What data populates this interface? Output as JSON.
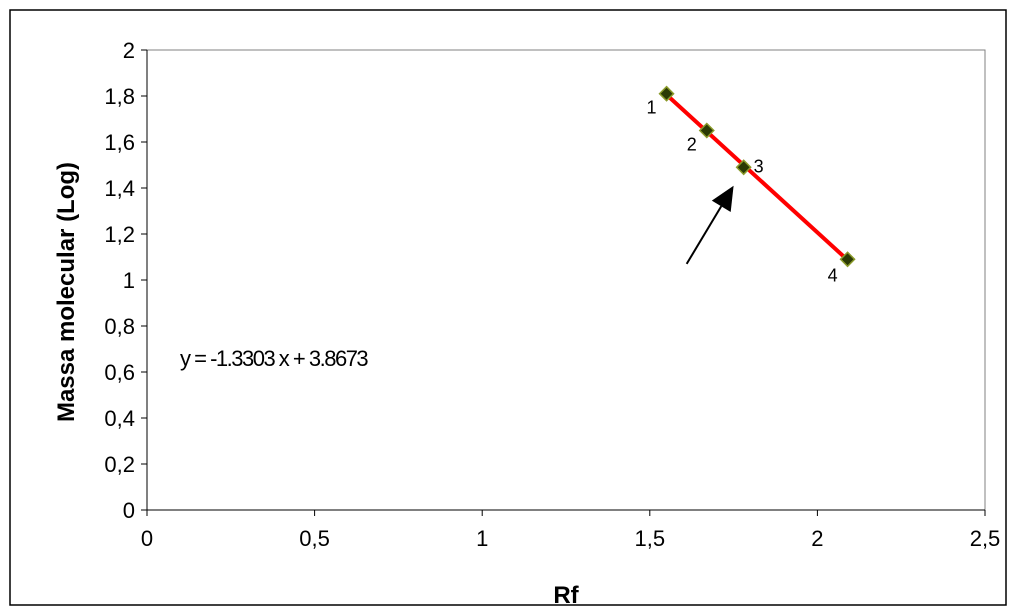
{
  "chart_data": {
    "type": "scatter",
    "title": "",
    "xlabel": "Rf",
    "ylabel": "Massa molecular (Log)",
    "xlim": [
      0,
      2.5
    ],
    "ylim": [
      0,
      2
    ],
    "x_ticks": [
      0,
      0.5,
      1,
      1.5,
      2,
      2.5
    ],
    "x_tick_labels": [
      "0",
      "0,5",
      "1",
      "1,5",
      "2",
      "2,5"
    ],
    "y_ticks": [
      0,
      0.2,
      0.4,
      0.6,
      0.8,
      1,
      1.2,
      1.4,
      1.6,
      1.8,
      2
    ],
    "y_tick_labels": [
      "0",
      "0,2",
      "0,4",
      "0,6",
      "0,8",
      "1",
      "1,2",
      "1,4",
      "1,6",
      "1,8",
      "2"
    ],
    "grid": false,
    "series": [
      {
        "points": [
          {
            "label": "1",
            "x": 1.55,
            "y": 1.81
          },
          {
            "label": "2",
            "x": 1.67,
            "y": 1.65
          },
          {
            "label": "3",
            "x": 1.78,
            "y": 1.49
          },
          {
            "label": "4",
            "x": 2.09,
            "y": 1.09
          }
        ],
        "marker_color": "#2b3a05",
        "marker_edge_color": "#8a9a2a"
      }
    ],
    "trendline": {
      "slope": -1.3303,
      "intercept": 3.8673,
      "x_range": [
        1.55,
        2.09
      ],
      "color": "#ff0000",
      "equation_text": "y = -1.3303 x + 3.8673"
    },
    "annotation_arrow": {
      "from": {
        "x": 1.61,
        "y": 1.07
      },
      "to": {
        "x": 1.75,
        "y": 1.41
      },
      "color": "#000000"
    }
  }
}
